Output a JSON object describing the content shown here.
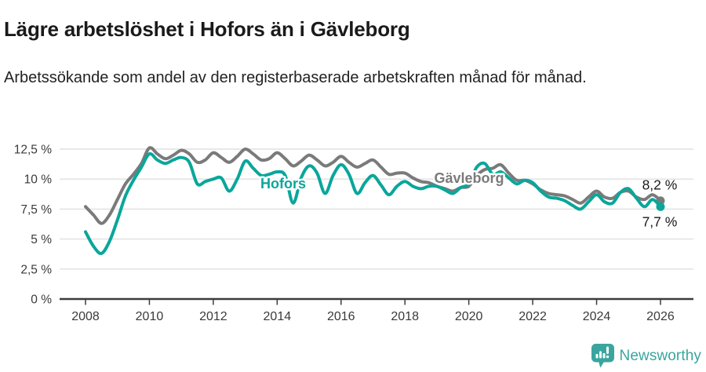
{
  "header": {
    "title": "Lägre arbetslöshet i Hofors än i Gävleborg",
    "subtitle": "Arbetssökande som andel av den registerbaserade arbetskraften månad för månad."
  },
  "footer": {
    "brand": "Newsworthy",
    "brand_color": "#3aa59e",
    "logo_icon": "speech-bubble-bar-chart-icon"
  },
  "chart_data": {
    "type": "line",
    "title": "Lägre arbetslöshet i Hofors än i Gävleborg",
    "xlabel": "",
    "ylabel": "",
    "grid": true,
    "legend_position": "inline-labels",
    "x_start": 2008,
    "x_step_years": 0.25,
    "xlim": [
      2007.2,
      2027.0
    ],
    "ylim": [
      0,
      13.3
    ],
    "x_ticks": [
      "2008",
      "2010",
      "2012",
      "2014",
      "2016",
      "2018",
      "2020",
      "2022",
      "2024",
      "2026"
    ],
    "y_ticks": [
      {
        "value": 0,
        "label": "0 %"
      },
      {
        "value": 2.5,
        "label": "2,5 %"
      },
      {
        "value": 5,
        "label": "5 %"
      },
      {
        "value": 7.5,
        "label": "7,5 %"
      },
      {
        "value": 10,
        "label": "10 %"
      },
      {
        "value": 12.5,
        "label": "12,5 %"
      }
    ],
    "colors": {
      "hofors": "#0aa69b",
      "gavleborg": "#7a7a7a",
      "grid_line": "#e0e0e0",
      "axis_line": "#3c3c3c",
      "axis_text": "#3a3a3a",
      "end_label_text": "#1a1a1a"
    },
    "series": [
      {
        "name": "Gävleborg",
        "color": "#7a7a7a",
        "end_label": "8,2 %",
        "values": [
          7.7,
          7.0,
          6.3,
          7.0,
          8.3,
          9.6,
          10.4,
          11.3,
          12.6,
          12.1,
          11.7,
          12.0,
          12.4,
          12.1,
          11.4,
          11.6,
          12.2,
          11.8,
          11.4,
          11.9,
          12.5,
          12.1,
          11.6,
          11.7,
          12.2,
          11.7,
          11.1,
          11.5,
          12.0,
          11.6,
          11.1,
          11.4,
          11.9,
          11.4,
          11.0,
          11.3,
          11.6,
          11.0,
          10.4,
          10.5,
          10.5,
          10.1,
          9.8,
          9.7,
          9.4,
          9.2,
          9.0,
          9.3,
          9.4,
          10.3,
          10.8,
          10.9,
          11.2,
          10.5,
          9.9,
          9.9,
          9.6,
          9.1,
          8.8,
          8.7,
          8.6,
          8.3,
          8.0,
          8.5,
          9.0,
          8.5,
          8.4,
          8.9,
          9.0,
          8.5,
          8.3,
          8.7,
          8.2
        ]
      },
      {
        "name": "Hofors",
        "color": "#0aa69b",
        "end_label": "7,7 %",
        "values": [
          5.6,
          4.4,
          3.8,
          4.8,
          6.6,
          8.6,
          9.9,
          11.0,
          12.1,
          11.6,
          11.3,
          11.6,
          11.8,
          11.4,
          9.6,
          9.8,
          10.0,
          10.1,
          9.0,
          10.0,
          11.5,
          10.9,
          10.3,
          10.4,
          10.6,
          10.3,
          8.0,
          10.1,
          11.1,
          10.5,
          8.8,
          10.3,
          11.2,
          10.4,
          8.8,
          9.7,
          10.3,
          9.5,
          8.7,
          9.4,
          9.8,
          9.4,
          9.2,
          9.4,
          9.4,
          9.1,
          8.8,
          9.3,
          9.6,
          11.0,
          11.3,
          10.4,
          10.6,
          10.1,
          9.6,
          9.9,
          9.7,
          9.0,
          8.5,
          8.4,
          8.2,
          7.8,
          7.5,
          8.1,
          8.7,
          8.1,
          8.0,
          8.9,
          9.2,
          8.4,
          7.7,
          8.3,
          7.7
        ]
      }
    ]
  }
}
